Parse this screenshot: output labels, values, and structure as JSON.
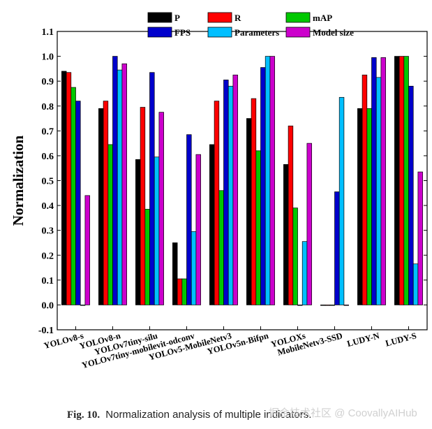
{
  "chart_data": {
    "type": "bar",
    "title": "",
    "xlabel": "",
    "ylabel": "Normalization",
    "ylim": [
      -0.1,
      1.1
    ],
    "yticks": [
      "-0.1",
      "0.0",
      "0.1",
      "0.2",
      "0.3",
      "0.4",
      "0.5",
      "0.6",
      "0.7",
      "0.8",
      "0.9",
      "1.0",
      "1.1"
    ],
    "grid": false,
    "legend": "top",
    "categories": [
      "YOLOv8-s",
      "YOLOv8-n",
      "YOLOv7tiny-silu",
      "YOLOv7tiny-mobilevit-odconv",
      "YOLOv5-MobileNetv3",
      "YOLOv5n-Bifpn",
      "YOLOXs",
      "MobileNetv3-SSD",
      "LUDY-N",
      "LUDY-S"
    ],
    "series": [
      {
        "name": "P",
        "color": "#000000",
        "values": [
          0.94,
          0.79,
          0.585,
          0.25,
          0.645,
          0.75,
          0.565,
          0.0,
          0.79,
          1.0
        ]
      },
      {
        "name": "R",
        "color": "#ff0000",
        "values": [
          0.935,
          0.82,
          0.795,
          0.105,
          0.82,
          0.83,
          0.72,
          0.0,
          0.925,
          1.0
        ]
      },
      {
        "name": "mAP",
        "color": "#00c800",
        "values": [
          0.875,
          0.645,
          0.385,
          0.105,
          0.46,
          0.62,
          0.39,
          0.0,
          0.79,
          1.0
        ]
      },
      {
        "name": "FPS",
        "color": "#0000cc",
        "values": [
          0.82,
          1.0,
          0.935,
          0.685,
          0.905,
          0.955,
          0.0,
          0.455,
          0.995,
          0.88
        ]
      },
      {
        "name": "Parameters",
        "color": "#00bfff",
        "values": [
          0.0,
          0.945,
          0.595,
          0.295,
          0.88,
          1.0,
          0.255,
          0.835,
          0.915,
          0.165
        ]
      },
      {
        "name": "Model size",
        "color": "#cc00cc",
        "values": [
          0.44,
          0.97,
          0.775,
          0.605,
          0.925,
          1.0,
          0.65,
          0.0,
          0.995,
          0.535
        ]
      }
    ]
  },
  "caption": {
    "label": "Fig. 10.",
    "text": "Normalization analysis of multiple indicators."
  },
  "watermark": "掘金技术社区 @ CoovallyAIHub"
}
